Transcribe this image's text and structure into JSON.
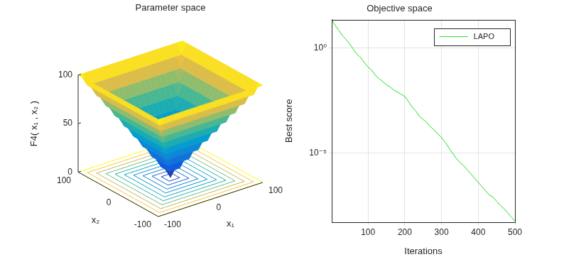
{
  "chart_data": [
    {
      "type": "surface",
      "title": "Parameter space",
      "x_label": "x₁",
      "y_label": "x₂",
      "z_label": "F4( x₁ , x₂ )",
      "x": [
        -100,
        -90,
        -80,
        -70,
        -60,
        -50,
        -40,
        -30,
        -20,
        -10,
        0,
        10,
        20,
        30,
        40,
        50,
        60,
        70,
        80,
        90,
        100
      ],
      "y": [
        -100,
        -90,
        -80,
        -70,
        -60,
        -50,
        -40,
        -30,
        -20,
        -10,
        0,
        10,
        20,
        30,
        40,
        50,
        60,
        70,
        80,
        90,
        100
      ],
      "z": [
        [
          100,
          100,
          100,
          100,
          100,
          100,
          100,
          100,
          100,
          100,
          100,
          100,
          100,
          100,
          100,
          100,
          100,
          100,
          100,
          100,
          100
        ],
        [
          100,
          90,
          90,
          90,
          90,
          90,
          90,
          90,
          90,
          90,
          90,
          90,
          90,
          90,
          90,
          90,
          90,
          90,
          90,
          90,
          100
        ],
        [
          100,
          90,
          80,
          80,
          80,
          80,
          80,
          80,
          80,
          80,
          80,
          80,
          80,
          80,
          80,
          80,
          80,
          80,
          80,
          90,
          100
        ],
        [
          100,
          90,
          80,
          70,
          70,
          70,
          70,
          70,
          70,
          70,
          70,
          70,
          70,
          70,
          70,
          70,
          70,
          70,
          80,
          90,
          100
        ],
        [
          100,
          90,
          80,
          70,
          60,
          60,
          60,
          60,
          60,
          60,
          60,
          60,
          60,
          60,
          60,
          60,
          60,
          70,
          80,
          90,
          100
        ],
        [
          100,
          90,
          80,
          70,
          60,
          50,
          50,
          50,
          50,
          50,
          50,
          50,
          50,
          50,
          50,
          50,
          60,
          70,
          80,
          90,
          100
        ],
        [
          100,
          90,
          80,
          70,
          60,
          50,
          40,
          40,
          40,
          40,
          40,
          40,
          40,
          40,
          40,
          50,
          60,
          70,
          80,
          90,
          100
        ],
        [
          100,
          90,
          80,
          70,
          60,
          50,
          40,
          30,
          30,
          30,
          30,
          30,
          30,
          30,
          40,
          50,
          60,
          70,
          80,
          90,
          100
        ],
        [
          100,
          90,
          80,
          70,
          60,
          50,
          40,
          30,
          20,
          20,
          20,
          20,
          20,
          30,
          40,
          50,
          60,
          70,
          80,
          90,
          100
        ],
        [
          100,
          90,
          80,
          70,
          60,
          50,
          40,
          30,
          20,
          10,
          10,
          10,
          20,
          30,
          40,
          50,
          60,
          70,
          80,
          90,
          100
        ],
        [
          100,
          90,
          80,
          70,
          60,
          50,
          40,
          30,
          20,
          10,
          0,
          10,
          20,
          30,
          40,
          50,
          60,
          70,
          80,
          90,
          100
        ],
        [
          100,
          90,
          80,
          70,
          60,
          50,
          40,
          30,
          20,
          10,
          10,
          10,
          20,
          30,
          40,
          50,
          60,
          70,
          80,
          90,
          100
        ],
        [
          100,
          90,
          80,
          70,
          60,
          50,
          40,
          30,
          20,
          20,
          20,
          20,
          20,
          30,
          40,
          50,
          60,
          70,
          80,
          90,
          100
        ],
        [
          100,
          90,
          80,
          70,
          60,
          50,
          40,
          30,
          30,
          30,
          30,
          30,
          30,
          30,
          40,
          50,
          60,
          70,
          80,
          90,
          100
        ],
        [
          100,
          90,
          80,
          70,
          60,
          50,
          40,
          40,
          40,
          40,
          40,
          40,
          40,
          40,
          40,
          50,
          60,
          70,
          80,
          90,
          100
        ],
        [
          100,
          90,
          80,
          70,
          60,
          50,
          50,
          50,
          50,
          50,
          50,
          50,
          50,
          50,
          50,
          50,
          60,
          70,
          80,
          90,
          100
        ],
        [
          100,
          90,
          80,
          70,
          60,
          60,
          60,
          60,
          60,
          60,
          60,
          60,
          60,
          60,
          60,
          60,
          60,
          70,
          80,
          90,
          100
        ],
        [
          100,
          90,
          80,
          70,
          70,
          70,
          70,
          70,
          70,
          70,
          70,
          70,
          70,
          70,
          70,
          70,
          70,
          70,
          80,
          90,
          100
        ],
        [
          100,
          90,
          80,
          80,
          80,
          80,
          80,
          80,
          80,
          80,
          80,
          80,
          80,
          80,
          80,
          80,
          80,
          80,
          80,
          90,
          100
        ],
        [
          100,
          90,
          90,
          90,
          90,
          90,
          90,
          90,
          90,
          90,
          90,
          90,
          90,
          90,
          90,
          90,
          90,
          90,
          90,
          90,
          100
        ],
        [
          100,
          100,
          100,
          100,
          100,
          100,
          100,
          100,
          100,
          100,
          100,
          100,
          100,
          100,
          100,
          100,
          100,
          100,
          100,
          100,
          100
        ]
      ],
      "contour_levels": [
        10,
        20,
        30,
        40,
        50,
        60,
        70,
        80,
        90,
        100
      ],
      "xlim": [
        -100,
        100
      ],
      "ylim": [
        -100,
        100
      ],
      "zlim": [
        0,
        100
      ],
      "xticks": [
        -100,
        0,
        100
      ],
      "yticks": [
        -100,
        0,
        100
      ],
      "zticks": [
        0,
        50,
        100
      ],
      "grid": false
    },
    {
      "type": "line",
      "title": "Objective space",
      "x_label": "Iterations",
      "y_label": "Best score",
      "x": [
        1,
        10,
        20,
        30,
        40,
        50,
        60,
        70,
        80,
        90,
        100,
        110,
        120,
        130,
        140,
        150,
        160,
        170,
        180,
        190,
        200,
        210,
        220,
        230,
        240,
        250,
        260,
        270,
        280,
        290,
        300,
        310,
        320,
        330,
        340,
        350,
        360,
        370,
        380,
        390,
        400,
        410,
        420,
        430,
        440,
        450,
        460,
        470,
        480,
        490,
        500
      ],
      "series": [
        {
          "name": "LAPO",
          "color": "#22dd22",
          "values": [
            22.4,
            12.6,
            7.08,
            3.98,
            2.63,
            1.58,
            0.891,
            0.501,
            0.355,
            0.2,
            0.126,
            0.0891,
            0.0501,
            0.0355,
            0.0251,
            0.0178,
            0.0141,
            0.01,
            0.00794,
            0.00631,
            0.00501,
            0.00282,
            0.00158,
            0.001,
            0.000562,
            0.000398,
            0.000282,
            0.000178,
            0.000126,
            7.94e-05,
            5.62e-05,
            3.16e-05,
            1.78e-05,
            1e-05,
            5.62e-06,
            3.55e-06,
            2.51e-06,
            1.58e-06,
            1e-06,
            6.31e-07,
            3.98e-07,
            2.51e-07,
            1.58e-07,
            1e-07,
            7.94e-08,
            5.01e-08,
            3.16e-08,
            2.24e-08,
            1.41e-08,
            8.91e-09,
            5.62e-09
          ]
        }
      ],
      "xlim": [
        1,
        500
      ],
      "xticks": [
        100,
        200,
        300,
        400,
        500
      ],
      "ylim": [
        5e-09,
        23
      ],
      "yticks": [
        {
          "value": 1e-05,
          "label": "10⁻⁵"
        },
        {
          "value": 1,
          "label": "10⁰"
        }
      ],
      "log": "y",
      "grid": true,
      "legend": "top-right"
    }
  ]
}
